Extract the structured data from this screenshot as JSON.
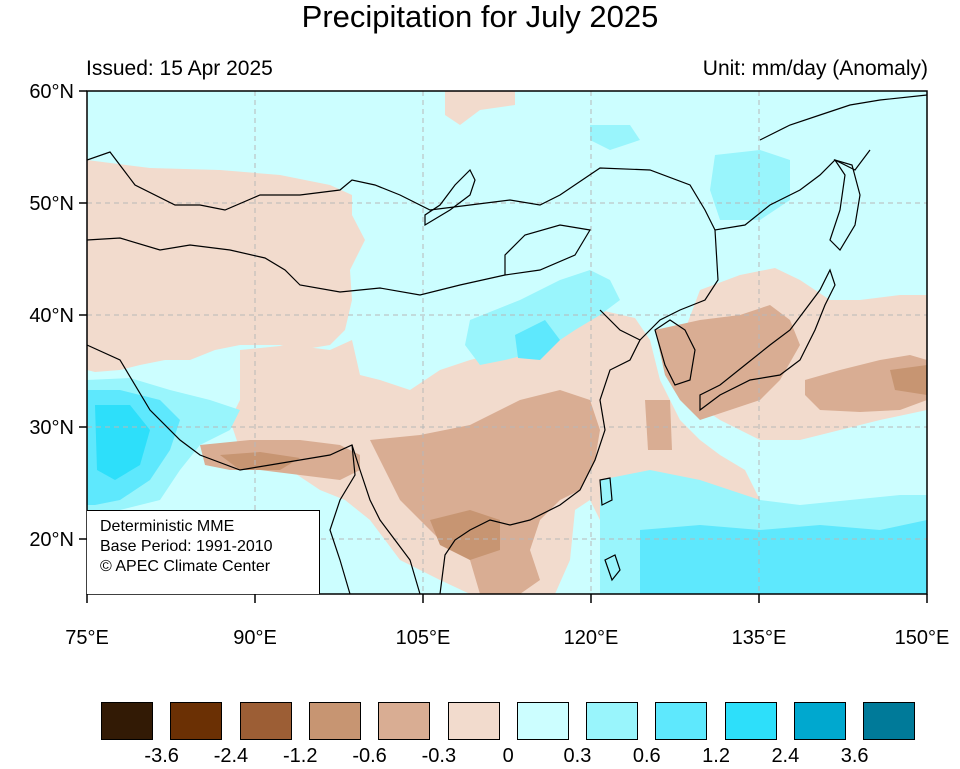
{
  "title": "Precipitation for July 2025",
  "issued": "Issued: 15 Apr 2025",
  "unit": "Unit: mm/day (Anomaly)",
  "info": {
    "line1": "Deterministic MME",
    "line2": "Base Period: 1991-2010",
    "line3": "© APEC Climate Center"
  },
  "axes": {
    "lat_labels": [
      "60°N",
      "50°N",
      "40°N",
      "30°N",
      "20°N"
    ],
    "lon_labels": [
      "75°E",
      "90°E",
      "105°E",
      "120°E",
      "135°E",
      "150°E"
    ],
    "lat_range": [
      15,
      60
    ],
    "lon_range": [
      75,
      150
    ]
  },
  "legend": {
    "colors": [
      "#321a05",
      "#6b3004",
      "#9c5e35",
      "#c79572",
      "#d9ad93",
      "#f2dbcd",
      "#ccfeff",
      "#99f5fc",
      "#5ee8fd",
      "#2ddffa",
      "#00a8cf",
      "#007a99"
    ],
    "ticks": [
      "-3.6",
      "-2.4",
      "-1.2",
      "-0.6",
      "-0.3",
      "0",
      "0.3",
      "0.6",
      "1.2",
      "2.4",
      "3.6"
    ]
  }
}
